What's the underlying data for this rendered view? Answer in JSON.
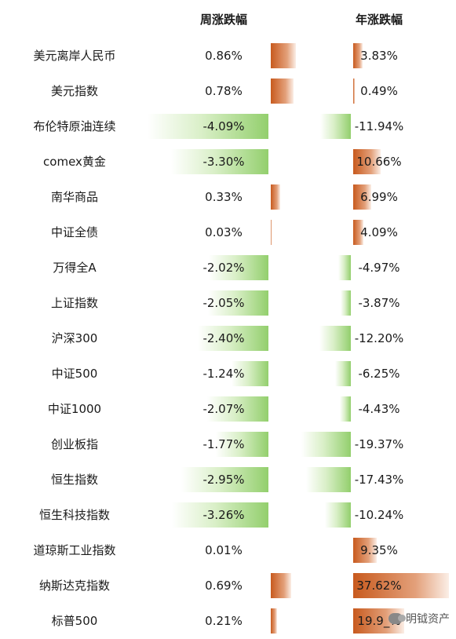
{
  "chart_data": {
    "type": "table",
    "columns": [
      "周涨跌幅",
      "年涨跌幅"
    ],
    "rows": [
      {
        "name": "美元离岸人民币",
        "week": 0.86,
        "week_label": "0.86%",
        "year": 3.83,
        "year_label": "3.83%"
      },
      {
        "name": "美元指数",
        "week": 0.78,
        "week_label": "0.78%",
        "year": 0.49,
        "year_label": "0.49%"
      },
      {
        "name": "布伦特原油连续",
        "week": -4.09,
        "week_label": "-4.09%",
        "year": -11.94,
        "year_label": "-11.94%"
      },
      {
        "name": "comex黄金",
        "week": -3.3,
        "week_label": "-3.30%",
        "year": 10.66,
        "year_label": "10.66%"
      },
      {
        "name": "南华商品",
        "week": 0.33,
        "week_label": "0.33%",
        "year": 6.99,
        "year_label": "6.99%"
      },
      {
        "name": "中证全债",
        "week": 0.03,
        "week_label": "0.03%",
        "year": 4.09,
        "year_label": "4.09%"
      },
      {
        "name": "万得全A",
        "week": -2.02,
        "week_label": "-2.02%",
        "year": -4.97,
        "year_label": "-4.97%"
      },
      {
        "name": "上证指数",
        "week": -2.05,
        "week_label": "-2.05%",
        "year": -3.87,
        "year_label": "-3.87%"
      },
      {
        "name": "沪深300",
        "week": -2.4,
        "week_label": "-2.40%",
        "year": -12.2,
        "year_label": "-12.20%"
      },
      {
        "name": "中证500",
        "week": -1.24,
        "week_label": "-1.24%",
        "year": -6.25,
        "year_label": "-6.25%"
      },
      {
        "name": "中证1000",
        "week": -2.07,
        "week_label": "-2.07%",
        "year": -4.43,
        "year_label": "-4.43%"
      },
      {
        "name": "创业板指",
        "week": -1.77,
        "week_label": "-1.77%",
        "year": -19.37,
        "year_label": "-19.37%"
      },
      {
        "name": "恒生指数",
        "week": -2.95,
        "week_label": "-2.95%",
        "year": -17.43,
        "year_label": "-17.43%"
      },
      {
        "name": "恒生科技指数",
        "week": -3.26,
        "week_label": "-3.26%",
        "year": -10.24,
        "year_label": "-10.24%"
      },
      {
        "name": "道琼斯工业指数",
        "week": 0.01,
        "week_label": "0.01%",
        "year": 9.35,
        "year_label": "9.35%"
      },
      {
        "name": "纳斯达克指数",
        "week": 0.69,
        "week_label": "0.69%",
        "year": 37.62,
        "year_label": "37.62%"
      },
      {
        "name": "标普500",
        "week": 0.21,
        "week_label": "0.21%",
        "year": 19.9,
        "year_label": "19.9_%"
      }
    ],
    "colors": {
      "positive": "#c85a1e",
      "negative": "#93cf6d"
    }
  },
  "watermark": {
    "text": "明钺资产",
    "icon": "wechat-icon"
  }
}
